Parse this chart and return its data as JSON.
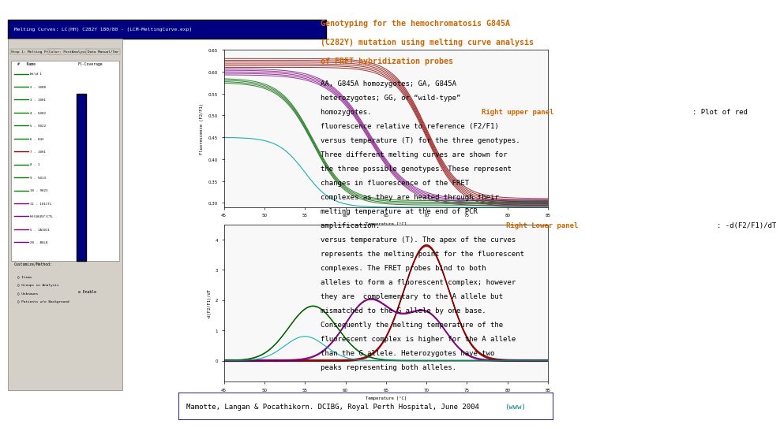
{
  "bg_color": "#d4d0c8",
  "title_orange": "Genotyping for the hemochromatosis G845A\n(C282Y) mutation using melting curve analysis\nof FRET hybridization probes",
  "body_text_before_panel1": "AA, G845A homozygotes; GA, G845A\nheterozygotes; GG, or “wild-type”\nhomozygotes. ",
  "panel1_label": "Right upper panel",
  "body_text_after_panel1": ": Plot of red\nfluorescence relative to reference (F2/F1)\nversus temperature (T) for the three genotypes.\nThree different melting curves are shown for\nthe three possible genotypes. These represent\nchanges in fluorescence of the FRET\ncomplexes as they are heated through their\nmelting temperature at the end of PCR\namplification. ",
  "panel2_label": "Right Lower panel",
  "body_text_after_panel2": ": -d(F2/F1)/dT\nversus temperature (T). The apex of the curves\nrepresents the melting point for the fluorescent\ncomplexes. The FRET probes bind to both\nalleles to form a fluorescent complex; however\nthey are  complementary to the A allele but\nmismatched to the G allele by one base.\nConsequently the melting temperature of the\nfluorescent complex is higher for the A allele\nthan the G allele. Heterozygotes have two\npeaks representing both alleles.",
  "footer_text": "Mamotte, Langan & Pocathikorn. DCIBG, Royal Perth Hospital, June 2004 ",
  "footer_link": "(www)",
  "orange_color": "#cc6600",
  "black_color": "#000000",
  "teal_link_color": "#008080",
  "screenshot_bg": "#c0c0c0",
  "screenshot_border": "#808080",
  "plot_bg": "#ffffff",
  "window_title_bg": "#000080",
  "window_title_text": "#ffffff"
}
